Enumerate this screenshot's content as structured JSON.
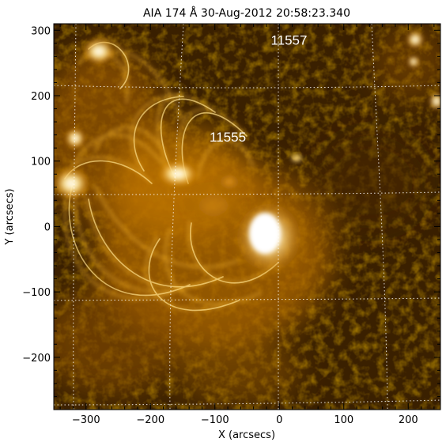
{
  "title": "AIA 174 Å 30-Aug-2012 20:58:23.340",
  "x_axis": {
    "label": "X (arcsecs)",
    "range": [
      -350,
      250
    ],
    "ticks": [
      -300,
      -200,
      -100,
      0,
      100,
      200
    ],
    "tick_labels": [
      "−300",
      "−200",
      "−100",
      "0",
      "100",
      "200"
    ]
  },
  "y_axis": {
    "label": "Y (arcsecs)",
    "range": [
      -280,
      310
    ],
    "ticks": [
      300,
      200,
      100,
      0,
      -100,
      -200
    ],
    "tick_labels": [
      "300",
      "200",
      "100",
      "0",
      "−100",
      "−200"
    ]
  },
  "annotations": [
    {
      "text": "11557",
      "x": 15,
      "y": 285
    },
    {
      "text": "11555",
      "x": -80,
      "y": 137
    }
  ],
  "colors": {
    "background": "#2a1700",
    "corona": "#d08000",
    "bright": "#fff6d0",
    "grid": "#ffffff"
  },
  "grid": true
}
